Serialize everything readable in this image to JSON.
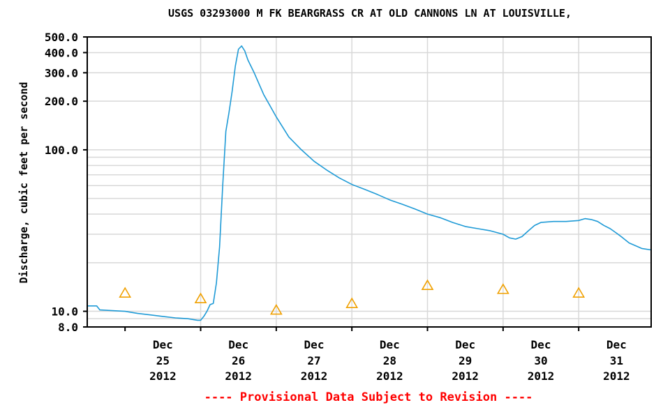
{
  "chart_data": {
    "type": "line",
    "title": "USGS 03293000 M FK BEARGRASS CR AT OLD CANNONS LN AT LOUISVILLE,",
    "ylabel": "Discharge, cubic feet per second",
    "xlabel": "",
    "yscale": "log",
    "ylim": [
      8.0,
      500.0
    ],
    "xlim": [
      "2012-12-24T12:00",
      "2012-12-31T23:00"
    ],
    "grid": true,
    "y_ticks": [
      {
        "value": 8.0,
        "label": "8.0"
      },
      {
        "value": 10.0,
        "label": "10.0"
      },
      {
        "value": 100.0,
        "label": "100.0"
      },
      {
        "value": 200.0,
        "label": "200.0"
      },
      {
        "value": 300.0,
        "label": "300.0"
      },
      {
        "value": 400.0,
        "label": "400.0"
      },
      {
        "value": 500.0,
        "label": "500.0"
      }
    ],
    "x_ticks": [
      {
        "value": "2012-12-25",
        "line1": "Dec",
        "line2": "25",
        "line3": "2012"
      },
      {
        "value": "2012-12-26",
        "line1": "Dec",
        "line2": "26",
        "line3": "2012"
      },
      {
        "value": "2012-12-27",
        "line1": "Dec",
        "line2": "27",
        "line3": "2012"
      },
      {
        "value": "2012-12-28",
        "line1": "Dec",
        "line2": "28",
        "line3": "2012"
      },
      {
        "value": "2012-12-29",
        "line1": "Dec",
        "line2": "29",
        "line3": "2012"
      },
      {
        "value": "2012-12-30",
        "line1": "Dec",
        "line2": "30",
        "line3": "2012"
      },
      {
        "value": "2012-12-31",
        "line1": "Dec",
        "line2": "31",
        "line3": "2012"
      }
    ],
    "series": [
      {
        "color": "#1e9ad6",
        "points": [
          [
            "2012-12-24T12:00",
            10.8
          ],
          [
            "2012-12-24T15:00",
            10.8
          ],
          [
            "2012-12-24T16:00",
            10.2
          ],
          [
            "2012-12-24T20:00",
            10.1
          ],
          [
            "2012-12-25T00:00",
            10.0
          ],
          [
            "2012-12-25T04:00",
            9.7
          ],
          [
            "2012-12-25T08:00",
            9.5
          ],
          [
            "2012-12-25T12:00",
            9.3
          ],
          [
            "2012-12-25T16:00",
            9.1
          ],
          [
            "2012-12-25T20:00",
            9.0
          ],
          [
            "2012-12-25T23:00",
            8.8
          ],
          [
            "2012-12-26T00:00",
            8.8
          ],
          [
            "2012-12-26T01:00",
            9.3
          ],
          [
            "2012-12-26T02:00",
            10.0
          ],
          [
            "2012-12-26T03:00",
            11.0
          ],
          [
            "2012-12-26T04:00",
            11.2
          ],
          [
            "2012-12-26T05:00",
            15.0
          ],
          [
            "2012-12-26T06:00",
            25.0
          ],
          [
            "2012-12-26T07:00",
            60.0
          ],
          [
            "2012-12-26T08:00",
            130.0
          ],
          [
            "2012-12-26T09:00",
            170.0
          ],
          [
            "2012-12-26T10:00",
            230.0
          ],
          [
            "2012-12-26T11:00",
            330.0
          ],
          [
            "2012-12-26T12:00",
            420.0
          ],
          [
            "2012-12-26T13:00",
            440.0
          ],
          [
            "2012-12-26T14:00",
            410.0
          ],
          [
            "2012-12-26T15:00",
            360.0
          ],
          [
            "2012-12-26T17:00",
            300.0
          ],
          [
            "2012-12-26T20:00",
            220.0
          ],
          [
            "2012-12-27T00:00",
            160.0
          ],
          [
            "2012-12-27T04:00",
            120.0
          ],
          [
            "2012-12-27T08:00",
            100.0
          ],
          [
            "2012-12-27T12:00",
            85.0
          ],
          [
            "2012-12-27T16:00",
            75.0
          ],
          [
            "2012-12-27T20:00",
            67.0
          ],
          [
            "2012-12-28T00:00",
            61.0
          ],
          [
            "2012-12-28T04:00",
            57.0
          ],
          [
            "2012-12-28T08:00",
            53.0
          ],
          [
            "2012-12-28T12:00",
            49.0
          ],
          [
            "2012-12-28T16:00",
            46.0
          ],
          [
            "2012-12-28T20:00",
            43.0
          ],
          [
            "2012-12-29T00:00",
            40.0
          ],
          [
            "2012-12-29T04:00",
            38.0
          ],
          [
            "2012-12-29T08:00",
            35.5
          ],
          [
            "2012-12-29T12:00",
            33.5
          ],
          [
            "2012-12-29T16:00",
            32.5
          ],
          [
            "2012-12-29T20:00",
            31.5
          ],
          [
            "2012-12-30T00:00",
            30.0
          ],
          [
            "2012-12-30T02:00",
            28.5
          ],
          [
            "2012-12-30T04:00",
            28.0
          ],
          [
            "2012-12-30T06:00",
            29.0
          ],
          [
            "2012-12-30T08:00",
            31.5
          ],
          [
            "2012-12-30T10:00",
            34.0
          ],
          [
            "2012-12-30T12:00",
            35.5
          ],
          [
            "2012-12-30T16:00",
            36.0
          ],
          [
            "2012-12-30T20:00",
            36.0
          ],
          [
            "2012-12-31T00:00",
            36.5
          ],
          [
            "2012-12-31T02:00",
            37.5
          ],
          [
            "2012-12-31T04:00",
            37.0
          ],
          [
            "2012-12-31T06:00",
            36.0
          ],
          [
            "2012-12-31T08:00",
            34.0
          ],
          [
            "2012-12-31T10:00",
            32.5
          ],
          [
            "2012-12-31T12:00",
            30.5
          ],
          [
            "2012-12-31T14:00",
            28.5
          ],
          [
            "2012-12-31T16:00",
            26.5
          ],
          [
            "2012-12-31T18:00",
            25.5
          ],
          [
            "2012-12-31T20:00",
            24.5
          ],
          [
            "2012-12-31T23:00",
            24.0
          ]
        ]
      }
    ],
    "markers": [
      {
        "x": "2012-12-25T00:00",
        "y": 13.0
      },
      {
        "x": "2012-12-26T00:00",
        "y": 12.0
      },
      {
        "x": "2012-12-27T00:00",
        "y": 10.2
      },
      {
        "x": "2012-12-28T00:00",
        "y": 11.2
      },
      {
        "x": "2012-12-29T00:00",
        "y": 14.5
      },
      {
        "x": "2012-12-30T00:00",
        "y": 13.7
      },
      {
        "x": "2012-12-31T00:00",
        "y": 13.0
      }
    ],
    "note": "---- Provisional Data Subject to Revision ----",
    "colors": {
      "line": "#1e9ad6",
      "marker": "#f0a000",
      "grid": "#d8d8d8",
      "note": "#ff0000",
      "axis": "#000000"
    }
  }
}
